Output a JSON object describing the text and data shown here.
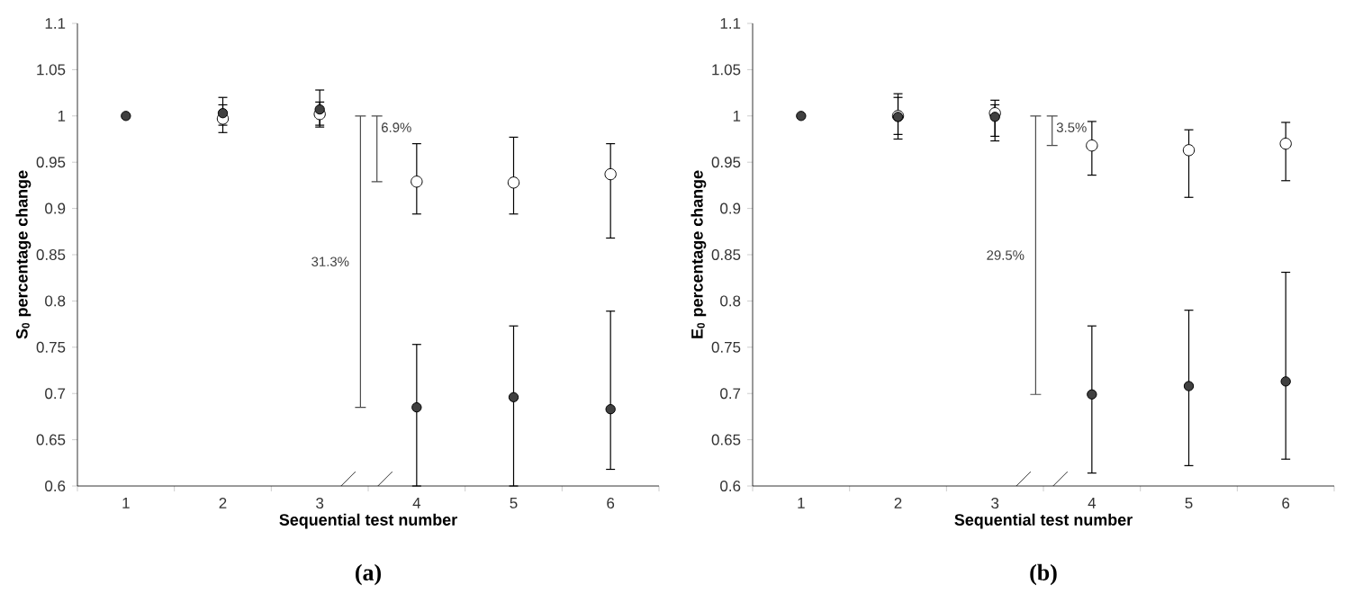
{
  "chart_data": [
    {
      "type": "scatter",
      "categories": [
        "1",
        "2",
        "3",
        "4",
        "5",
        "6"
      ],
      "xlabel": "Sequential test number",
      "ylabel": "S$_{0}$ percentage change",
      "ylim": [
        0.6,
        1.1
      ],
      "yticks": [
        0.6,
        0.65,
        0.7,
        0.75,
        0.8,
        0.85,
        0.9,
        0.95,
        1,
        1.05,
        1.1
      ],
      "marker": "circle",
      "series": [
        {
          "color": "#ffffff",
          "values": [
            null,
            0.997,
            1.002,
            0.929,
            0.928,
            0.937
          ],
          "errors": [
            null,
            [
              0.982,
              1.012
            ],
            [
              0.99,
              1.015
            ],
            [
              0.894,
              0.97
            ],
            [
              0.894,
              0.977
            ],
            [
              0.868,
              0.97
            ]
          ]
        },
        {
          "color": "#404040",
          "values": [
            1.0,
            1.003,
            1.007,
            0.685,
            0.696,
            0.683
          ],
          "errors": [
            null,
            [
              0.99,
              1.02
            ],
            [
              0.988,
              1.028
            ],
            [
              0.6,
              0.753
            ],
            [
              0.6,
              0.773
            ],
            [
              0.618,
              0.789
            ]
          ]
        }
      ],
      "annotations": [
        "31.3%",
        "6.9%",
        "(a)"
      ]
    },
    {
      "type": "scatter",
      "categories": [
        "1",
        "2",
        "3",
        "4",
        "5",
        "6"
      ],
      "xlabel": "Sequential test number",
      "ylabel": "E$_{0}$ percentage change",
      "ylim": [
        0.6,
        1.1
      ],
      "yticks": [
        0.6,
        0.65,
        0.7,
        0.75,
        0.8,
        0.85,
        0.9,
        0.95,
        1,
        1.05,
        1.1
      ],
      "marker": "circle",
      "series": [
        {
          "color": "#ffffff",
          "values": [
            null,
            1.0,
            1.003,
            0.968,
            0.963,
            0.97
          ],
          "errors": [
            null,
            [
              0.975,
              1.024
            ],
            [
              0.978,
              1.017
            ],
            [
              0.936,
              0.994
            ],
            [
              0.912,
              0.985
            ],
            [
              0.93,
              0.993
            ]
          ]
        },
        {
          "color": "#404040",
          "values": [
            1.0,
            0.999,
            0.999,
            0.699,
            0.708,
            0.713
          ],
          "errors": [
            null,
            [
              0.98,
              1.02
            ],
            [
              0.973,
              1.012
            ],
            [
              0.614,
              0.773
            ],
            [
              0.622,
              0.79
            ],
            [
              0.629,
              0.831
            ]
          ]
        }
      ],
      "annotations": [
        "29.5%",
        "3.5%",
        "(b)"
      ]
    }
  ]
}
